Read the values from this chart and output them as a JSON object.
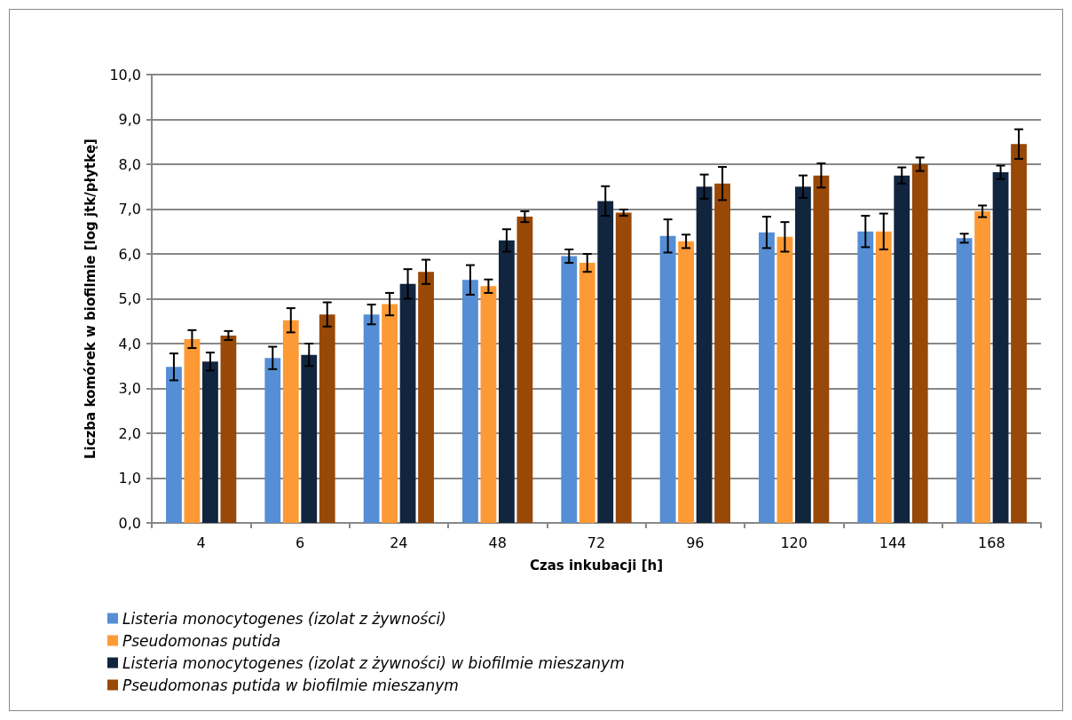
{
  "chart_data": {
    "type": "bar",
    "xlabel": "Czas inkubacji [h]",
    "ylabel": "Liczba komórek w biofilmie [log jtk/płytkę]",
    "categories": [
      "4",
      "6",
      "24",
      "48",
      "72",
      "96",
      "120",
      "144",
      "168"
    ],
    "series": [
      {
        "name": "Listeria monocytogenes (izolat z żywności)",
        "color": "#558ed5",
        "values": [
          3.48,
          3.68,
          4.65,
          5.42,
          5.95,
          6.4,
          6.48,
          6.5,
          6.35
        ],
        "errors": [
          0.3,
          0.25,
          0.22,
          0.33,
          0.15,
          0.37,
          0.35,
          0.35,
          0.1
        ]
      },
      {
        "name": "Pseudomonas putida",
        "color": "#fd9a35",
        "values": [
          4.1,
          4.52,
          4.88,
          5.28,
          5.8,
          6.28,
          6.38,
          6.5,
          6.95
        ],
        "errors": [
          0.2,
          0.27,
          0.25,
          0.15,
          0.2,
          0.15,
          0.33,
          0.4,
          0.13
        ]
      },
      {
        "name": "Listeria monocytogenes (izolat z żywności) w biofilmie mieszanym",
        "color": "#12253f",
        "values": [
          3.6,
          3.75,
          5.33,
          6.3,
          7.18,
          7.5,
          7.5,
          7.75,
          7.82
        ],
        "errors": [
          0.2,
          0.25,
          0.33,
          0.25,
          0.33,
          0.27,
          0.25,
          0.18,
          0.15
        ]
      },
      {
        "name": "Pseudomonas putida w biofilmie mieszanym",
        "color": "#984807",
        "values": [
          4.18,
          4.65,
          5.6,
          6.83,
          6.92,
          7.57,
          7.75,
          8.0,
          8.45
        ],
        "errors": [
          0.1,
          0.27,
          0.27,
          0.12,
          0.07,
          0.37,
          0.27,
          0.15,
          0.33
        ]
      }
    ],
    "ylim": [
      0,
      10
    ],
    "yticks": [
      {
        "value": 0,
        "label": "0,0"
      },
      {
        "value": 1,
        "label": "1,0"
      },
      {
        "value": 2,
        "label": "2,0"
      },
      {
        "value": 3,
        "label": "3,0"
      },
      {
        "value": 4,
        "label": "4,0"
      },
      {
        "value": 5,
        "label": "5,0"
      },
      {
        "value": 6,
        "label": "6,0"
      },
      {
        "value": 7,
        "label": "7,0"
      },
      {
        "value": 8,
        "label": "8,0"
      },
      {
        "value": 9,
        "label": "9,0"
      },
      {
        "value": 10,
        "label": "10,0"
      }
    ],
    "grid": "y",
    "legend": "bottom left"
  }
}
